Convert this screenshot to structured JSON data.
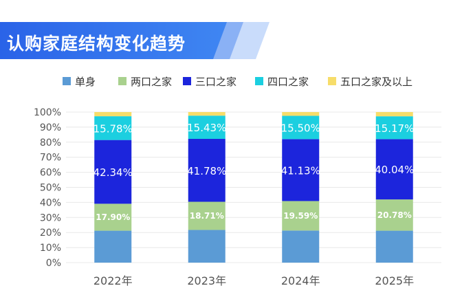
{
  "header": {
    "title": "认购家庭结构变化趋势"
  },
  "colors": {
    "banner_dark": "#2a63e8",
    "banner_light": "#bcd2fb",
    "grid": "#e8e8e8",
    "axis_text": "#555555"
  },
  "chart_data": {
    "type": "bar",
    "stacked": true,
    "title": "认购家庭结构变化趋势",
    "categories": [
      "2022年",
      "2023年",
      "2024年",
      "2025年"
    ],
    "ylim": [
      0,
      100
    ],
    "yticks": [
      "0%",
      "10%",
      "20%",
      "30%",
      "40%",
      "50%",
      "60%",
      "70%",
      "80%",
      "90%",
      "100%"
    ],
    "grid": true,
    "legend_position": "top",
    "series": [
      {
        "name": "单身",
        "color": "#5b9bd5",
        "values": [
          21.2,
          21.7,
          21.3,
          21.2
        ],
        "labels": [
          "",
          "",
          "",
          ""
        ],
        "label_style": "none"
      },
      {
        "name": "两口之家",
        "color": "#a9d18e",
        "values": [
          17.9,
          18.71,
          19.59,
          20.78
        ],
        "labels": [
          "17.90%",
          "18.71%",
          "19.59%",
          "20.78%"
        ],
        "label_style": "bold"
      },
      {
        "name": "三口之家",
        "color": "#1c25dc",
        "values": [
          42.34,
          41.78,
          41.13,
          40.04
        ],
        "labels": [
          "42.34%",
          "41.78%",
          "41.13%",
          "40.04%"
        ],
        "label_style": "regular"
      },
      {
        "name": "四口之家",
        "color": "#1bcfe0",
        "values": [
          15.78,
          15.43,
          15.5,
          15.17
        ],
        "labels": [
          "15.78%",
          "15.43%",
          "15.50%",
          "15.17%"
        ],
        "label_style": "regular"
      },
      {
        "name": "五口之家及以上",
        "color": "#f7dd6a",
        "values": [
          2.78,
          2.38,
          2.48,
          2.81
        ],
        "labels": [
          "",
          "",
          "",
          ""
        ],
        "label_style": "none"
      }
    ]
  }
}
